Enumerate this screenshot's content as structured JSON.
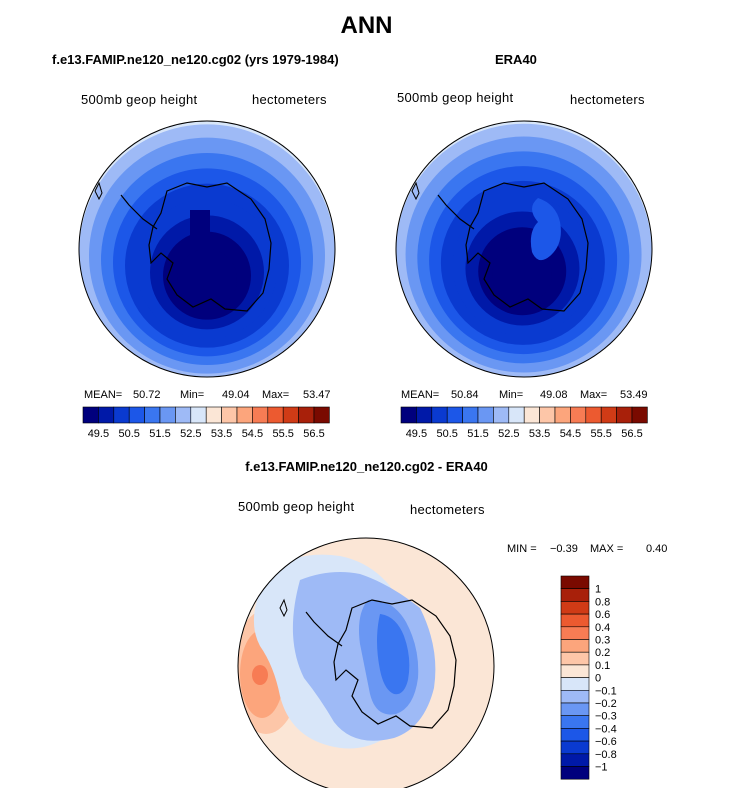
{
  "figure": {
    "title": "ANN",
    "left_title": "f.e13.FAMIP.ne120_ne120.cg02 (yrs 1979-1984)",
    "right_title": "ERA40",
    "diff_title": "f.e13.FAMIP.ne120_ne120.cg02 - ERA40"
  },
  "colors": {
    "scale": [
      "#00007d",
      "#0019a8",
      "#0a3ad0",
      "#1c57e8",
      "#3a76f0",
      "#6a97f3",
      "#9ebaf6",
      "#d8e6f9",
      "#fbe6d6",
      "#fdc6a8",
      "#fca57c",
      "#f77c54",
      "#ec5a30",
      "#d03b16",
      "#a8200a",
      "#7a0a00"
    ],
    "continent_line": "#000000"
  },
  "chart_data": [
    {
      "type": "heatmap",
      "projection": "south polar stereographic",
      "variable": "500mb geop height",
      "units": "hectometers",
      "stats": {
        "mean_label": "MEAN=",
        "mean": "50.72",
        "min_label": "Min=",
        "min": "49.04",
        "max_label": "Max=",
        "max": "53.47"
      },
      "colorbar": {
        "ticks": [
          "49.5",
          "50.5",
          "51.5",
          "52.5",
          "53.5",
          "54.5",
          "55.5",
          "56.5"
        ]
      }
    },
    {
      "type": "heatmap",
      "projection": "south polar stereographic",
      "variable": "500mb geop height",
      "units": "hectometers",
      "stats": {
        "mean_label": "MEAN=",
        "mean": "50.84",
        "min_label": "Min=",
        "min": "49.08",
        "max_label": "Max=",
        "max": "53.49"
      },
      "colorbar": {
        "ticks": [
          "49.5",
          "50.5",
          "51.5",
          "52.5",
          "53.5",
          "54.5",
          "55.5",
          "56.5"
        ]
      }
    },
    {
      "type": "heatmap",
      "projection": "south polar stereographic",
      "variable": "500mb geop height",
      "units": "hectometers",
      "stats": {
        "min_label": "MIN =",
        "min": "−0.39",
        "max_label": "MAX =",
        "max": "0.40"
      },
      "colorbar": {
        "orientation": "vertical",
        "ticks": [
          "1",
          "0.8",
          "0.6",
          "0.4",
          "0.3",
          "0.2",
          "0.1",
          "0",
          "−0.1",
          "−0.2",
          "−0.3",
          "−0.4",
          "−0.6",
          "−0.8",
          "−1"
        ]
      }
    }
  ]
}
